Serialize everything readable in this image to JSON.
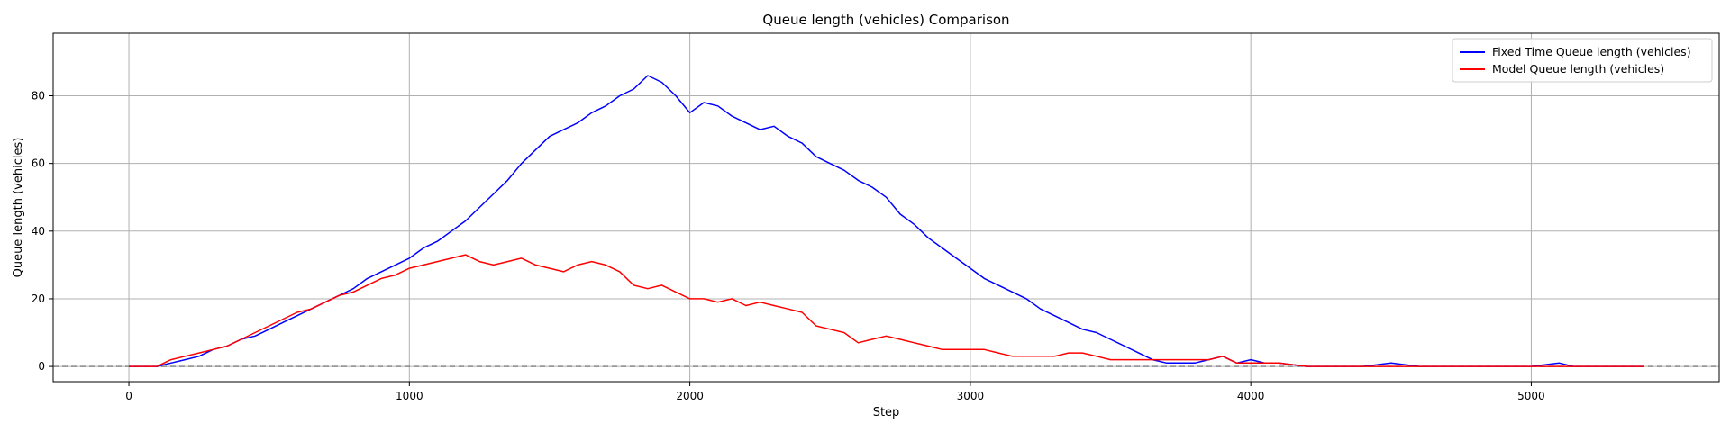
{
  "chart_data": {
    "type": "line",
    "title": "Queue length (vehicles) Comparison",
    "xlabel": "Step",
    "ylabel": "Queue length (vehicles)",
    "xlim": [
      -270,
      5670
    ],
    "ylim": [
      -4.5,
      98.5
    ],
    "xticks": [
      0,
      1000,
      2000,
      3000,
      4000,
      5000
    ],
    "yticks": [
      0,
      20,
      40,
      60,
      80
    ],
    "grid": true,
    "legend_position": "top-right",
    "reference_line": {
      "y": 0,
      "style": "dashed",
      "color": "#808080"
    },
    "series": [
      {
        "name": "Fixed Time Queue length (vehicles)",
        "color": "#0000ff",
        "x": [
          0,
          100,
          150,
          200,
          250,
          300,
          350,
          400,
          450,
          500,
          550,
          600,
          650,
          700,
          750,
          800,
          850,
          900,
          950,
          1000,
          1050,
          1100,
          1150,
          1200,
          1250,
          1300,
          1350,
          1400,
          1450,
          1500,
          1550,
          1600,
          1650,
          1700,
          1750,
          1800,
          1850,
          1900,
          1950,
          2000,
          2050,
          2100,
          2150,
          2200,
          2250,
          2300,
          2350,
          2400,
          2450,
          2500,
          2550,
          2600,
          2650,
          2700,
          2750,
          2800,
          2850,
          2900,
          2950,
          3000,
          3050,
          3100,
          3150,
          3200,
          3250,
          3300,
          3350,
          3400,
          3450,
          3500,
          3550,
          3600,
          3650,
          3700,
          3750,
          3800,
          3850,
          3900,
          3950,
          4000,
          4050,
          4100,
          4200,
          4300,
          4400,
          4500,
          4600,
          4700,
          4800,
          4900,
          5000,
          5100,
          5150,
          5200,
          5300,
          5400
        ],
        "y": [
          0,
          0,
          1,
          2,
          3,
          5,
          6,
          8,
          9,
          11,
          13,
          15,
          17,
          19,
          21,
          23,
          26,
          28,
          30,
          32,
          35,
          37,
          40,
          43,
          47,
          51,
          55,
          60,
          64,
          68,
          70,
          72,
          75,
          77,
          80,
          82,
          86,
          84,
          80,
          75,
          78,
          77,
          74,
          72,
          70,
          71,
          68,
          66,
          62,
          60,
          58,
          55,
          53,
          50,
          45,
          42,
          38,
          35,
          32,
          29,
          26,
          24,
          22,
          20,
          17,
          15,
          13,
          11,
          10,
          8,
          6,
          4,
          2,
          1,
          1,
          1,
          2,
          3,
          1,
          2,
          1,
          1,
          0,
          0,
          0,
          1,
          0,
          0,
          0,
          0,
          0,
          1,
          0,
          0,
          0,
          0
        ]
      },
      {
        "name": "Model Queue length (vehicles)",
        "color": "#ff0000",
        "x": [
          0,
          100,
          150,
          200,
          250,
          300,
          350,
          400,
          450,
          500,
          550,
          600,
          650,
          700,
          750,
          800,
          850,
          900,
          950,
          1000,
          1050,
          1100,
          1150,
          1200,
          1250,
          1300,
          1350,
          1400,
          1450,
          1500,
          1550,
          1600,
          1650,
          1700,
          1750,
          1800,
          1850,
          1900,
          1950,
          2000,
          2050,
          2100,
          2150,
          2200,
          2250,
          2300,
          2350,
          2400,
          2450,
          2500,
          2550,
          2600,
          2650,
          2700,
          2750,
          2800,
          2850,
          2900,
          2950,
          3000,
          3050,
          3100,
          3150,
          3200,
          3250,
          3300,
          3350,
          3400,
          3450,
          3500,
          3550,
          3600,
          3650,
          3700,
          3750,
          3800,
          3850,
          3900,
          3950,
          4000,
          4100,
          4200,
          4300,
          4400,
          4500,
          4600,
          4700,
          4800,
          4900,
          5000,
          5100,
          5200,
          5300,
          5400
        ],
        "y": [
          0,
          0,
          2,
          3,
          4,
          5,
          6,
          8,
          10,
          12,
          14,
          16,
          17,
          19,
          21,
          22,
          24,
          26,
          27,
          29,
          30,
          31,
          32,
          33,
          31,
          30,
          31,
          32,
          30,
          29,
          28,
          30,
          31,
          30,
          28,
          24,
          23,
          24,
          22,
          20,
          20,
          19,
          20,
          18,
          19,
          18,
          17,
          16,
          12,
          11,
          10,
          7,
          8,
          9,
          8,
          7,
          6,
          5,
          5,
          5,
          5,
          4,
          3,
          3,
          3,
          3,
          4,
          4,
          3,
          2,
          2,
          2,
          2,
          2,
          2,
          2,
          2,
          3,
          1,
          1,
          1,
          0,
          0,
          0,
          0,
          0,
          0,
          0,
          0,
          0,
          0,
          0,
          0,
          0
        ]
      }
    ]
  }
}
